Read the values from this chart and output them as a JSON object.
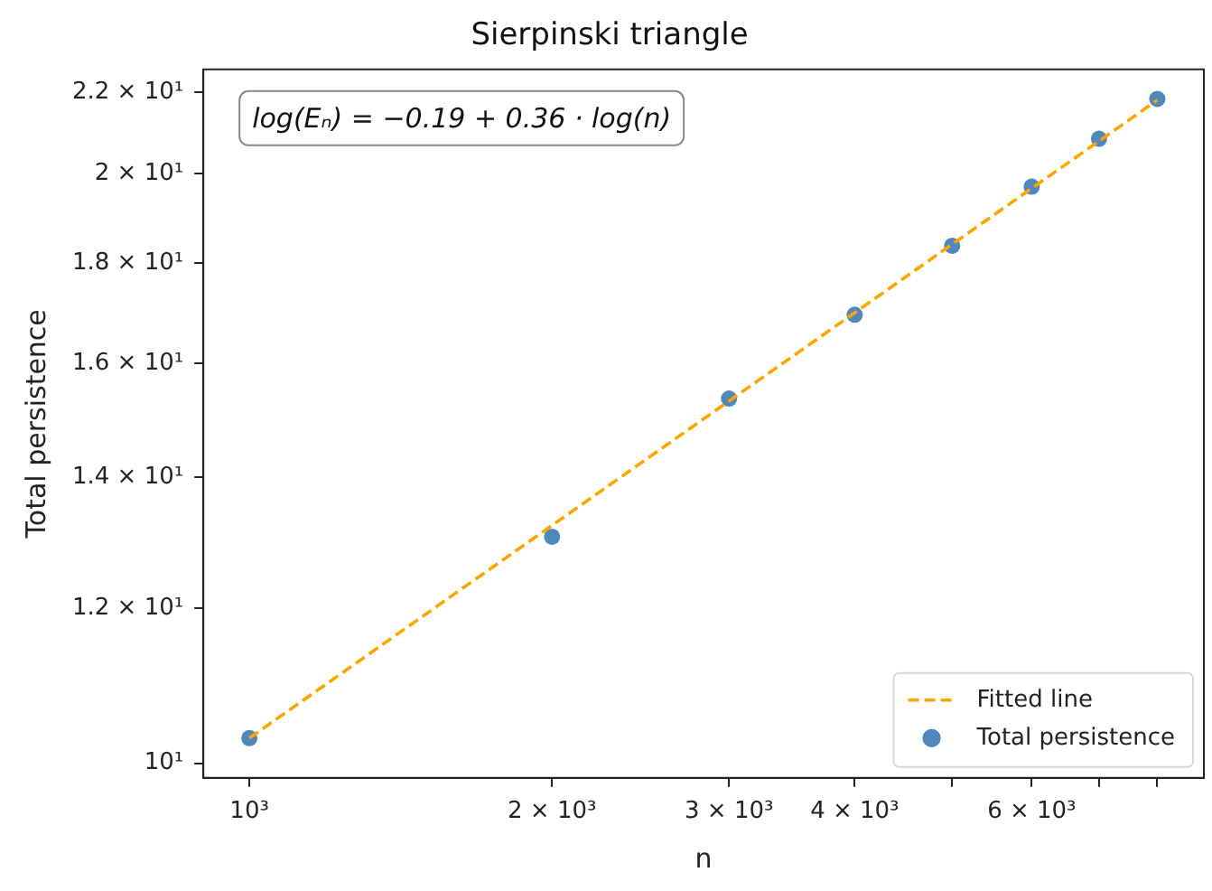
{
  "chart_data": {
    "type": "scatter",
    "title": "Sierpinski triangle",
    "xlabel": "n",
    "ylabel": "Total persistence",
    "log": "xy",
    "grid": false,
    "legend": "bottom right",
    "marker": "circle",
    "xlim": [
      900,
      8900
    ],
    "ylim": [
      9.83,
      22.6
    ],
    "xticks": [
      {
        "value": 1000,
        "label": "10³"
      },
      {
        "value": 2000,
        "label": "2 × 10³"
      },
      {
        "value": 3000,
        "label": "3 × 10³"
      },
      {
        "value": 4000,
        "label": "4 × 10³"
      },
      {
        "value": 5000,
        "label": null
      },
      {
        "value": 6000,
        "label": "6 × 10³"
      },
      {
        "value": 7000,
        "label": null
      },
      {
        "value": 8000,
        "label": null
      }
    ],
    "yticks": [
      {
        "value": 10,
        "label": "10¹"
      },
      {
        "value": 12,
        "label": "1.2 × 10¹"
      },
      {
        "value": 14,
        "label": "1.4 × 10¹"
      },
      {
        "value": 16,
        "label": "1.6 × 10¹"
      },
      {
        "value": 18,
        "label": "1.8 × 10¹"
      },
      {
        "value": 20,
        "label": "2 × 10¹"
      },
      {
        "value": 22,
        "label": "2.2 × 10¹"
      }
    ],
    "annotations": [
      "log(Eₙ) = −0.19 + 0.36 · log(n)"
    ],
    "series": [
      {
        "name": "Fitted line",
        "type": "line",
        "line_style": "dashed",
        "marker": "none",
        "color": "#ffa500",
        "x": [
          1000,
          8000
        ],
        "values": [
          10.3,
          21.8
        ]
      },
      {
        "name": "Total persistence",
        "color": "#4f88bb",
        "x": [
          1000,
          2000,
          3000,
          4000,
          5000,
          6000,
          7000,
          8000
        ],
        "values": [
          10.3,
          13.05,
          15.35,
          16.94,
          18.37,
          19.69,
          20.83,
          21.83
        ]
      }
    ]
  }
}
